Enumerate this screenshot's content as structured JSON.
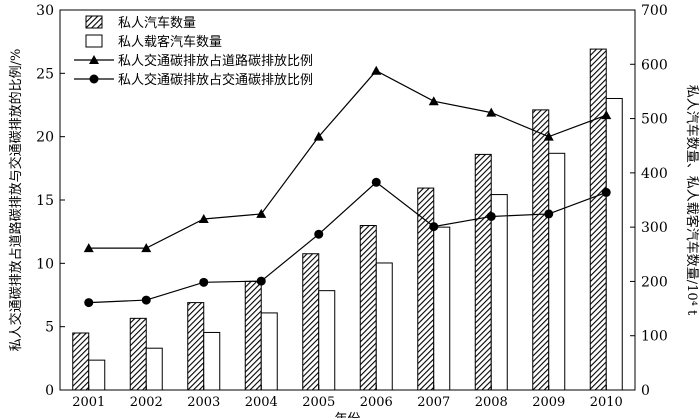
{
  "chart_data": {
    "type": "bar",
    "xlabel": "年份",
    "ylabel_left": "私人交通碳排放占道路碳排放与交通碳排放的比例/%",
    "ylabel_right": "私人汽车数量、私人载客汽车数量/10⁴ t",
    "categories": [
      "2001",
      "2002",
      "2003",
      "2004",
      "2005",
      "2006",
      "2007",
      "2008",
      "2009",
      "2010"
    ],
    "ylim_left": [
      0,
      30
    ],
    "yticks_left": [
      0,
      5,
      10,
      15,
      20,
      25,
      30
    ],
    "ylim_right": [
      0,
      700
    ],
    "yticks_right": [
      0,
      100,
      200,
      300,
      400,
      500,
      600,
      700
    ],
    "grid": false,
    "legend_position": "top-left",
    "bar_series": [
      {
        "name": "私人汽车数量",
        "axis": "right",
        "pattern": "hatched",
        "values": [
          105,
          132,
          161,
          200,
          251,
          303,
          372,
          434,
          516,
          628
        ]
      },
      {
        "name": "私人载客汽车数量",
        "axis": "right",
        "pattern": "white",
        "values": [
          55,
          77,
          106,
          142,
          183,
          234,
          300,
          360,
          436,
          537
        ]
      }
    ],
    "line_series": [
      {
        "name": "私人交通碳排放占道路碳排放比例",
        "axis": "left",
        "marker": "triangle",
        "values": [
          11.2,
          11.2,
          13.5,
          13.9,
          20.0,
          25.2,
          22.8,
          21.9,
          20.0,
          21.7
        ]
      },
      {
        "name": "私人交通碳排放占交通碳排放比例",
        "axis": "left",
        "marker": "circle",
        "values": [
          6.9,
          7.1,
          8.5,
          8.6,
          12.3,
          16.4,
          12.9,
          13.7,
          13.9,
          15.6
        ]
      }
    ]
  }
}
